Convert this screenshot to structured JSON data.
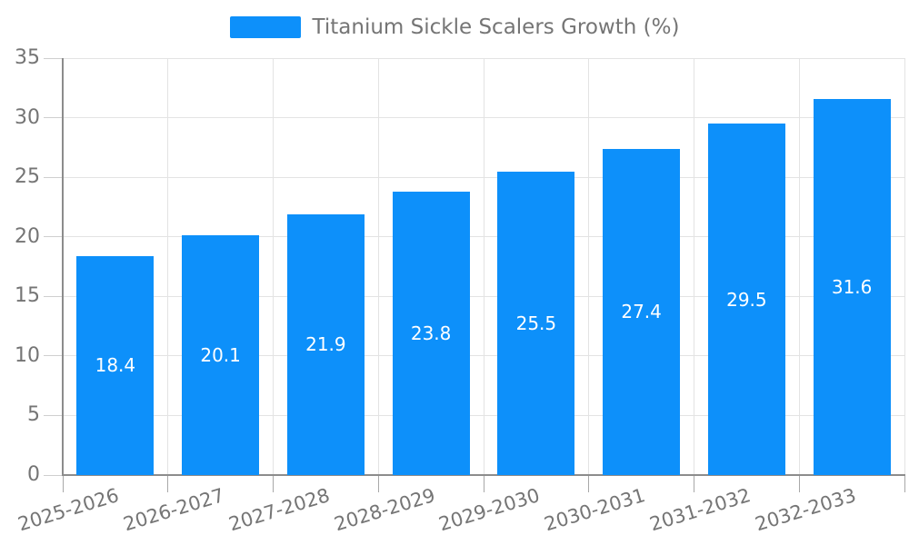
{
  "legend": {
    "label": "Titanium Sickle Scalers Growth (%)"
  },
  "colors": {
    "bar": "#0d90fa",
    "grid": "#e3e3e3",
    "axis": "#8c8c8c",
    "tick_text": "#757575",
    "bar_label_text": "#ffffff",
    "y_tick_mark": "#cfcfcf",
    "x_tick_mark": "#a8a8a8"
  },
  "chart_data": {
    "type": "bar",
    "title": "Titanium Sickle Scalers Growth (%)",
    "categories": [
      "2025-2026",
      "2026-2027",
      "2027-2028",
      "2028-2029",
      "2029-2030",
      "2030-2031",
      "2031-2032",
      "2032-2033"
    ],
    "values": [
      18.4,
      20.1,
      21.9,
      23.8,
      25.5,
      27.4,
      29.5,
      31.6
    ],
    "value_labels": [
      "18.4",
      "20.1",
      "21.9",
      "23.8",
      "25.5",
      "27.4",
      "29.5",
      "31.6"
    ],
    "xlabel": "",
    "ylabel": "",
    "ylim": [
      0,
      35
    ],
    "yticks": [
      0,
      5,
      10,
      15,
      20,
      25,
      30,
      35
    ],
    "grid": true,
    "legend_position": "top",
    "x_label_rotation_deg": -17
  }
}
